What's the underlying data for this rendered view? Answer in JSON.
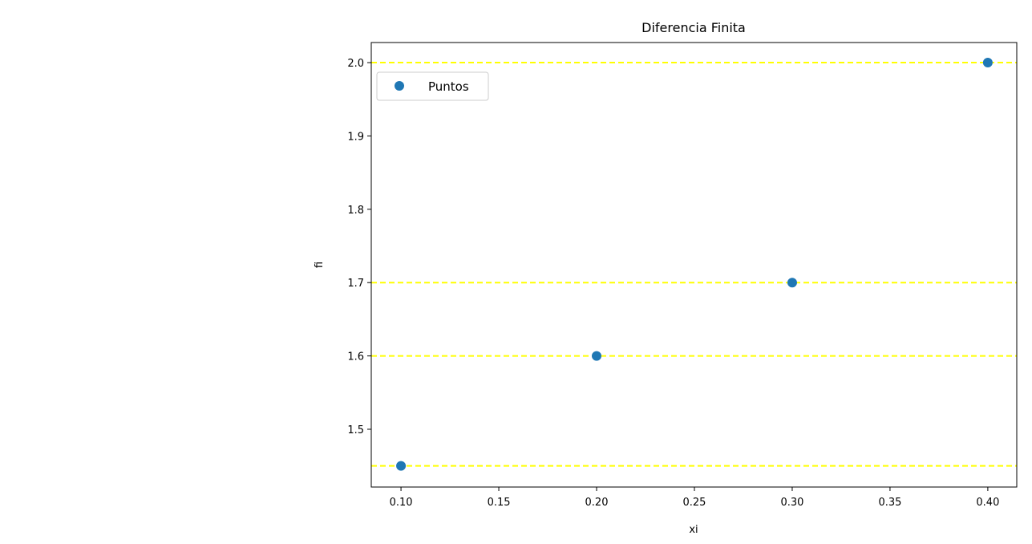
{
  "chart_data": {
    "type": "scatter",
    "title": "Diferencia Finita",
    "xlabel": "xi",
    "ylabel": "fi",
    "xlim": [
      0.0848,
      0.4148
    ],
    "ylim": [
      1.4212,
      2.0274
    ],
    "xticks": [
      0.1,
      0.15,
      0.2,
      0.25,
      0.3,
      0.35,
      0.4
    ],
    "xtick_labels": [
      "0.10",
      "0.15",
      "0.20",
      "0.25",
      "0.30",
      "0.35",
      "0.40"
    ],
    "yticks": [
      1.5,
      1.6,
      1.7,
      1.8,
      1.9,
      2.0
    ],
    "ytick_labels": [
      "1.5",
      "1.6",
      "1.7",
      "1.8",
      "1.9",
      "2.0"
    ],
    "grid": false,
    "legend_position": "upper-left",
    "series": [
      {
        "name": "Puntos",
        "color": "#1f77b4",
        "x": [
          0.1,
          0.2,
          0.3,
          0.4
        ],
        "y": [
          1.45,
          1.6,
          1.7,
          2.0
        ]
      }
    ],
    "hlines": {
      "y": [
        1.45,
        1.6,
        1.7,
        2.0
      ],
      "color": "#ffff00",
      "style": "dashed"
    }
  }
}
